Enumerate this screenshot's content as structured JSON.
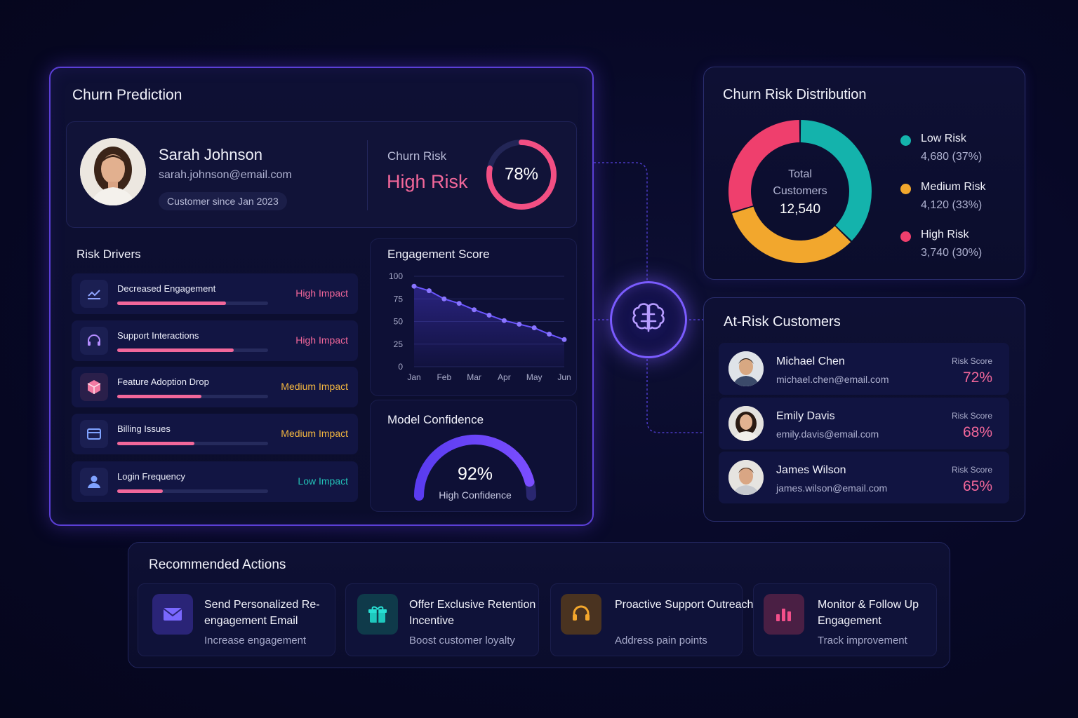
{
  "churn": {
    "title": "Churn Prediction",
    "customer": {
      "name": "Sarah Johnson",
      "email": "sarah.johnson@email.com",
      "since": "Customer since Jan 2023"
    },
    "risk": {
      "label": "Churn Risk",
      "level": "High Risk",
      "percent_text": "78%",
      "percent": 78
    },
    "drivers_title": "Risk Drivers",
    "drivers": [
      {
        "label": "Decreased Engagement",
        "impact": "High Impact",
        "impact_color": "#f2679a",
        "fill": 0.72,
        "icon": "trend-chart-icon"
      },
      {
        "label": "Support Interactions",
        "impact": "High Impact",
        "impact_color": "#f2679a",
        "fill": 0.77,
        "icon": "headset-icon"
      },
      {
        "label": "Feature Adoption Drop",
        "impact": "Medium Impact",
        "impact_color": "#f4b740",
        "fill": 0.56,
        "icon": "box-icon"
      },
      {
        "label": "Billing Issues",
        "impact": "Medium Impact",
        "impact_color": "#f4b740",
        "fill": 0.51,
        "icon": "credit-card-icon"
      },
      {
        "label": "Login Frequency",
        "impact": "Low Impact",
        "impact_color": "#23c3b8",
        "fill": 0.3,
        "icon": "user-icon"
      }
    ],
    "engagement": {
      "title": "Engagement Score",
      "chart_data": {
        "type": "line",
        "categories": [
          "Jan",
          "Feb",
          "Mar",
          "Apr",
          "May",
          "Jun"
        ],
        "y_ticks": [
          "100",
          "75",
          "50",
          "25",
          "0"
        ],
        "ylim": [
          0,
          100
        ],
        "x": [
          0,
          0.5,
          1,
          1.5,
          2,
          2.5,
          3,
          3.5,
          4,
          4.5,
          5
        ],
        "values": [
          89,
          84,
          75,
          70,
          63,
          57,
          51,
          47,
          43,
          36,
          30
        ],
        "grid": true
      }
    },
    "confidence": {
      "title": "Model Confidence",
      "value_text": "92%",
      "value": 92,
      "label": "High Confidence"
    }
  },
  "distribution": {
    "title": "Churn Risk Distribution",
    "center_line1": "Total",
    "center_line2": "Customers",
    "center_total": "12,540",
    "chart_data": {
      "type": "pie",
      "slices": [
        {
          "name": "Low Risk",
          "value": 4680,
          "label": "4,680 (37%)",
          "color": "#14b3ac"
        },
        {
          "name": "Medium Risk",
          "value": 4120,
          "label": "4,120 (33%)",
          "color": "#f2a72d"
        },
        {
          "name": "High Risk",
          "value": 3740,
          "label": "3,740 (30%)",
          "color": "#ef3f6d"
        }
      ]
    }
  },
  "at_risk": {
    "title": "At-Risk Customers",
    "score_label": "Risk Score",
    "customers": [
      {
        "name": "Michael Chen",
        "email": "michael.chen@email.com",
        "score": "72%"
      },
      {
        "name": "Emily Davis",
        "email": "emily.davis@email.com",
        "score": "68%"
      },
      {
        "name": "James Wilson",
        "email": "james.wilson@email.com",
        "score": "65%"
      }
    ]
  },
  "actions": {
    "title": "Recommended Actions",
    "items": [
      {
        "title": "Send Personalized Re-engagement Email",
        "desc": "Increase engagement",
        "icon": "envelope-icon",
        "color": "#6c5cf0",
        "bg": "#2a2477"
      },
      {
        "title": "Offer Exclusive Retention Incentive",
        "desc": "Boost customer loyalty",
        "icon": "gift-icon",
        "color": "#1ec8bd",
        "bg": "#0f3a4a"
      },
      {
        "title": "Proactive Support Outreach",
        "desc": "Address pain points",
        "icon": "headset-icon",
        "color": "#f4a72c",
        "bg": "#4a3320"
      },
      {
        "title": "Monitor & Follow Up Engagement",
        "desc": "Track improvement",
        "icon": "bar-chart-icon",
        "color": "#f24f8a",
        "bg": "#4a1f44"
      }
    ]
  },
  "hub": {
    "icon": "brain-icon"
  }
}
